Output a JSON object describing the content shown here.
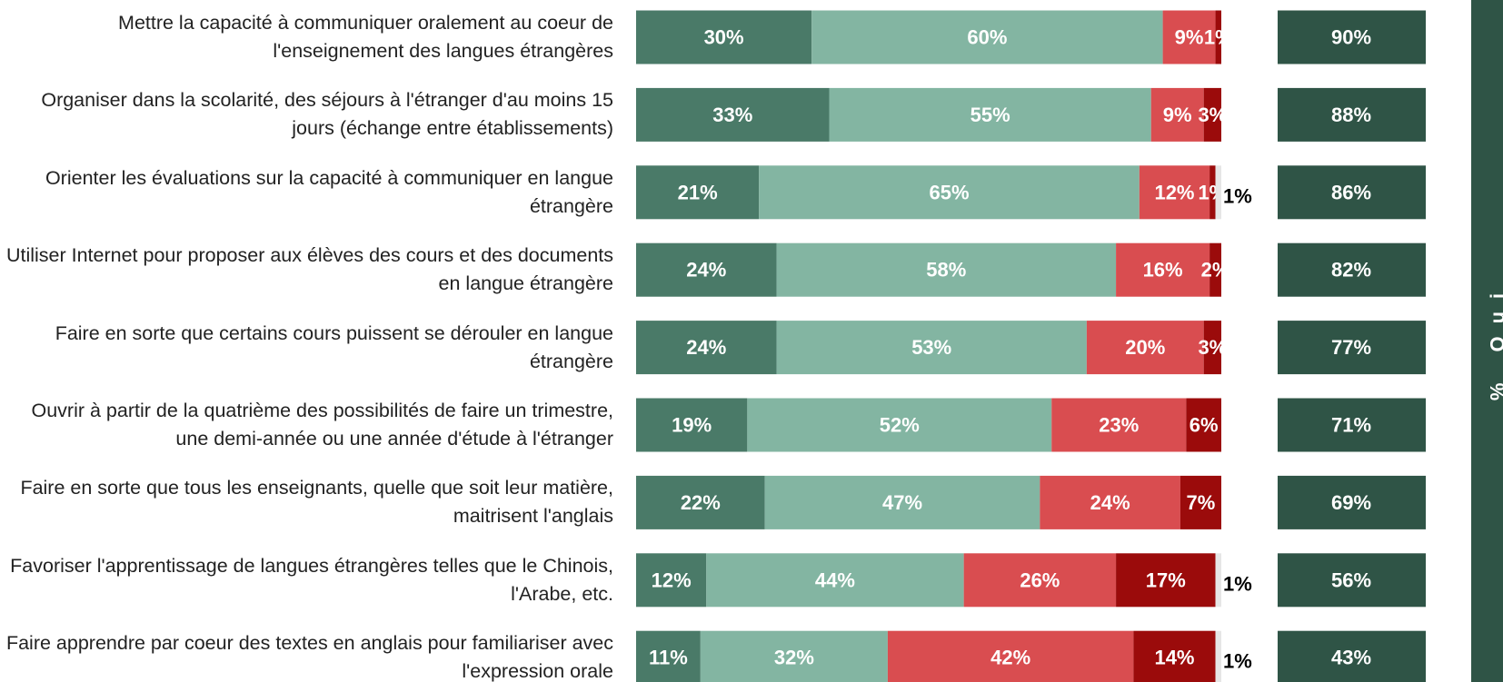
{
  "chart_data": {
    "type": "stacked_bar_horizontal",
    "categories": [
      "Mettre la capacité à communiquer oralement au coeur de l'enseignement des langues étrangères",
      "Organiser dans la scolarité, des séjours à l'étranger d'au moins 15 jours (échange entre établissements)",
      "Orienter les évaluations sur la capacité à communiquer en langue étrangère",
      "Utiliser Internet pour proposer aux élèves des cours et des documents en langue étrangère",
      "Faire en sorte que certains cours puissent se dérouler en langue étrangère",
      "Ouvrir à partir de la quatrième des possibilités de faire un trimestre, une demi-année ou une année d'étude à l'étranger",
      "Faire en sorte que tous les enseignants, quelle que soit leur matière, maitrisent l'anglais",
      "Favoriser l'apprentissage de langues étrangères telles que le Chinois, l'Arabe, etc.",
      "Faire apprendre par coeur des textes en anglais pour familiariser avec l'expression orale"
    ],
    "xlim": [
      0,
      100
    ],
    "series": [
      {
        "color": "#4a7a68",
        "values": [
          30,
          33,
          21,
          24,
          24,
          19,
          22,
          12,
          11
        ],
        "value_labels": [
          "30%",
          "33%",
          "21%",
          "24%",
          "24%",
          "19%",
          "22%",
          "12%",
          "11%"
        ]
      },
      {
        "color": "#83b5a2",
        "values": [
          60,
          55,
          65,
          58,
          53,
          52,
          47,
          44,
          32
        ],
        "value_labels": [
          "60%",
          "55%",
          "65%",
          "58%",
          "53%",
          "52%",
          "47%",
          "44%",
          "32%"
        ]
      },
      {
        "color": "#d94d50",
        "values": [
          9,
          9,
          12,
          16,
          20,
          23,
          24,
          26,
          42
        ],
        "value_labels": [
          "9%",
          "9%",
          "12%",
          "16%",
          "20%",
          "23%",
          "24%",
          "26%",
          "42%"
        ]
      },
      {
        "color": "#9b0b0b",
        "values": [
          1,
          3,
          1,
          2,
          3,
          6,
          7,
          17,
          14
        ],
        "value_labels": [
          "1%",
          "3%",
          "1%",
          "2%",
          "3%",
          "6%",
          "7%",
          "17%",
          "14%"
        ]
      },
      {
        "color": "#e6e6e6",
        "values": [
          null,
          null,
          1,
          null,
          null,
          null,
          null,
          1,
          1
        ],
        "value_labels": [
          null,
          null,
          "1%",
          null,
          null,
          null,
          null,
          "1%",
          "1%"
        ]
      }
    ],
    "totals": {
      "color": "#2f5446",
      "values": [
        90,
        88,
        86,
        82,
        77,
        71,
        69,
        56,
        43
      ],
      "value_labels": [
        "90%",
        "88%",
        "86%",
        "82%",
        "77%",
        "71%",
        "69%",
        "56%",
        "43%"
      ]
    },
    "side_label": "% Oui"
  }
}
